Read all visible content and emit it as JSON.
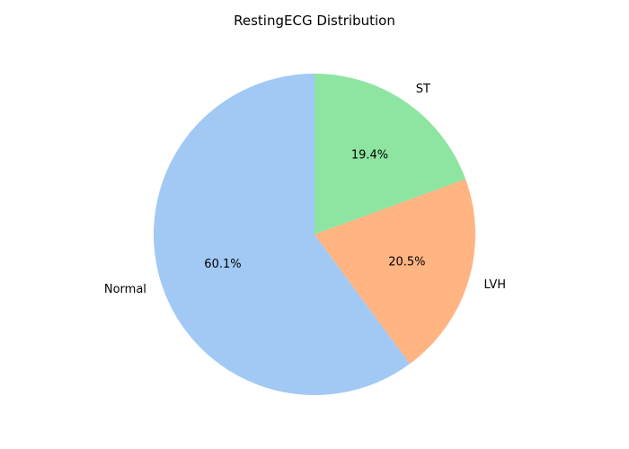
{
  "chart_data": {
    "type": "pie",
    "title": "RestingECG Distribution",
    "categories": [
      "Normal",
      "LVH",
      "ST"
    ],
    "values": [
      60.1,
      20.5,
      19.4
    ],
    "percent_labels": [
      "60.1%",
      "20.5%",
      "19.4%"
    ],
    "colors": [
      "#a1c9f4",
      "#ffb482",
      "#8de5a1"
    ],
    "start_angle_deg": 90,
    "direction": "counterclockwise"
  }
}
